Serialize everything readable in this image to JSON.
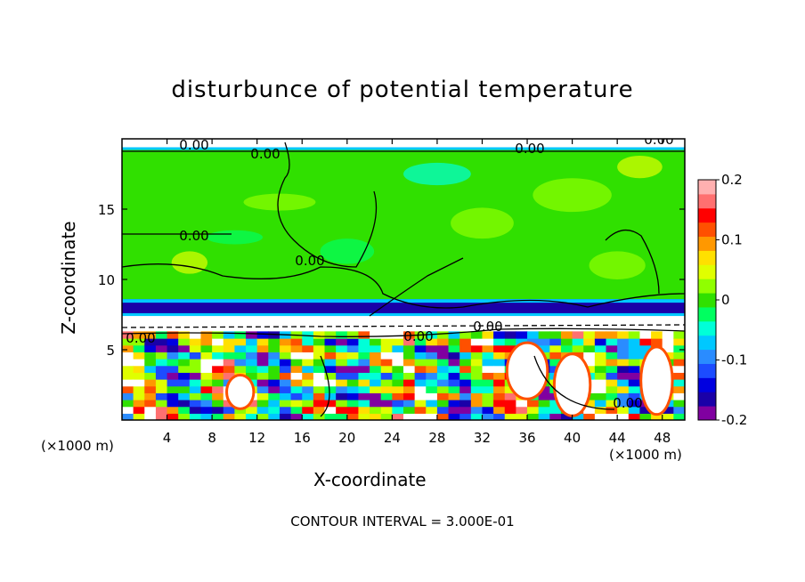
{
  "chart_data": {
    "type": "heatmap",
    "title": "disturbunce of potential temperature",
    "xlabel": "X-coordinate",
    "ylabel": "Z-coordinate",
    "x_unit": "(×1000 m)",
    "y_unit": "(×1000 m)",
    "xlim": [
      0,
      50
    ],
    "ylim": [
      0,
      20
    ],
    "x_ticks": [
      "4",
      "8",
      "12",
      "16",
      "20",
      "24",
      "28",
      "32",
      "36",
      "40",
      "44",
      "48"
    ],
    "y_ticks": [
      "5",
      "10",
      "15"
    ],
    "colorbar": {
      "range": [
        -0.2,
        0.2
      ],
      "ticks": [
        "0.2",
        "0.1",
        "0",
        "-0.1",
        "-0.2"
      ],
      "colors": [
        "#8000a0",
        "#1a00a8",
        "#0000e0",
        "#1c4cff",
        "#2a8cff",
        "#00c8ff",
        "#00ffd8",
        "#00ff60",
        "#30e000",
        "#90ff00",
        "#e0ff00",
        "#ffe000",
        "#ff9800",
        "#ff5000",
        "#ff0000",
        "#ff7070",
        "#ffb0b0"
      ]
    },
    "contour_labels": [
      "0.00",
      "0.00",
      "0.00",
      "0.00",
      "0.00",
      "0.00",
      "0.00",
      "0.00",
      "0.00",
      "0.00"
    ],
    "footer": "CONTOUR INTERVAL = 3.000E-01",
    "layers": [
      {
        "z_range": [
          19.4,
          20
        ],
        "description_value": "white/black stratospheric band"
      },
      {
        "z_range": [
          8.5,
          19.4
        ],
        "value": 0.0
      },
      {
        "z_range": [
          7.4,
          8.5
        ],
        "value": -0.15
      },
      {
        "z_range": [
          6.3,
          7.4
        ],
        "value": 0.0
      },
      {
        "z_range": [
          0,
          6.3
        ],
        "value": "mixed -0.2 to 0.2"
      }
    ]
  }
}
